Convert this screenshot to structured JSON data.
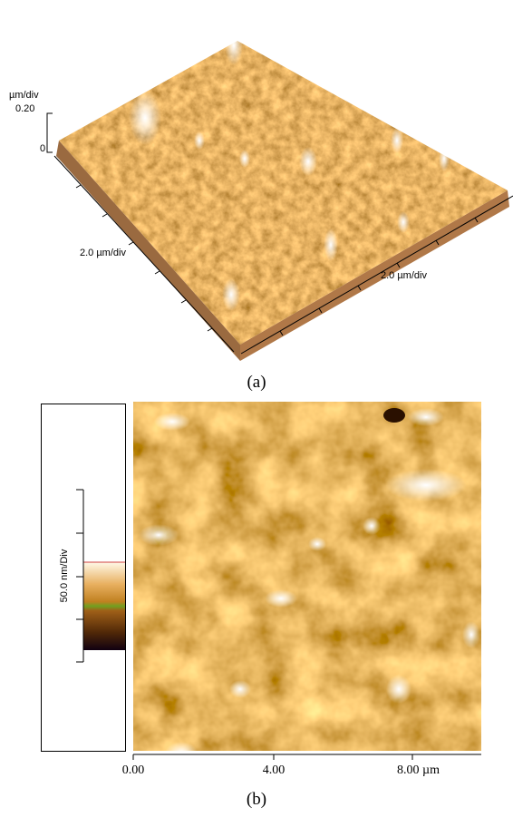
{
  "panel_a": {
    "z_unit": "µm/div",
    "z_max": "0.20",
    "z_min": "0",
    "x_scale": "2.0 µm/div",
    "y_scale": "2.0 µm/div",
    "caption": "(a)"
  },
  "panel_b": {
    "color_scale_label": "50.0 nm/Div",
    "x_ticks": [
      "0.00",
      "4.00",
      "8.00 µm"
    ],
    "caption": "(b)"
  }
}
